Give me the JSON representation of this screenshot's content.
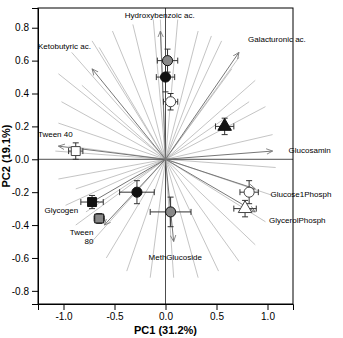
{
  "chart_data": {
    "type": "biplot",
    "x_label": "PC1 (31.2%)",
    "y_label": "PC2 (19.1%)",
    "xlim": [
      -1.25,
      1.25
    ],
    "ylim": [
      -0.88,
      0.92
    ],
    "xticks": [
      {
        "value": -1.0,
        "label": "-1.0"
      },
      -0.5,
      {
        "value": 0.0,
        "label": "0.0"
      },
      0.5,
      {
        "value": 1.0,
        "label": "1.0"
      }
    ],
    "yticks": [
      -0.8,
      -0.6,
      -0.4,
      -0.2,
      {
        "value": 0.0,
        "label": "0.0"
      },
      0.2,
      0.4,
      0.6,
      0.8
    ],
    "loadings": {
      "color": "#aaaaaa",
      "x": [
        -1.05,
        -0.92,
        -0.72,
        -0.52,
        -0.32,
        -0.12,
        0.12,
        0.32,
        0.55,
        0.72,
        0.88,
        0.98,
        1.05,
        1.08,
        1.05,
        0.98,
        0.88,
        0.72,
        0.52,
        0.32,
        0.08,
        -0.15,
        -0.38,
        -0.58,
        -0.75,
        -0.88,
        -0.98,
        -1.05,
        -1.08,
        -1.05,
        -1.02,
        -0.05,
        0.45,
        0.65,
        0.82,
        -0.65,
        -0.82,
        -0.95,
        -0.88,
        -0.78
      ],
      "y": [
        0.52,
        0.65,
        0.72,
        0.78,
        0.82,
        0.85,
        0.85,
        0.78,
        0.72,
        0.62,
        0.48,
        0.32,
        0.15,
        -0.05,
        -0.22,
        -0.38,
        -0.52,
        -0.62,
        -0.68,
        -0.72,
        -0.72,
        -0.72,
        -0.68,
        -0.6,
        -0.52,
        -0.4,
        -0.28,
        -0.12,
        0.05,
        0.22,
        0.35,
        0.85,
        0.75,
        0.55,
        0.35,
        0.68,
        0.45,
        0.08,
        -0.18,
        -0.32
      ]
    },
    "arrows": {
      "color": "#777777",
      "names": [
        "Hydroxybenzoic ac.",
        "Galacturonic ac.",
        "Ketobutyric ac.",
        "Tween 40",
        "Glycogen",
        "Tween\n80",
        "MethGlucoside",
        "GlycerolPhosph",
        "Glucose1Phosph",
        "Glucosamin"
      ],
      "x": [
        -0.05,
        0.72,
        -0.72,
        -1.05,
        -0.72,
        -0.6,
        0.08,
        0.88,
        0.88,
        1.05
      ],
      "y": [
        0.78,
        0.65,
        0.55,
        0.08,
        -0.26,
        -0.4,
        -0.5,
        -0.32,
        -0.18,
        0.05
      ]
    },
    "points": {
      "x": [
        0.02,
        0.0,
        0.05,
        0.58,
        -0.88,
        -0.28,
        -0.72,
        -0.65,
        0.05,
        0.82,
        0.78
      ],
      "y": [
        0.6,
        0.5,
        0.35,
        0.2,
        0.05,
        -0.2,
        -0.26,
        -0.36,
        -0.32,
        -0.2,
        -0.3
      ],
      "x_error": [
        0.1,
        0.09,
        0.07,
        0.09,
        0.07,
        0.17,
        0.11,
        0.05,
        0.2,
        0.09,
        0.11
      ],
      "y_error": [
        0.07,
        0.09,
        0.05,
        0.05,
        0.05,
        0.07,
        0.04,
        0.03,
        0.09,
        0.07,
        0.05
      ],
      "colors": [
        "#888888",
        "#111111",
        "white",
        "#111111",
        "white",
        "#111111",
        "#111111",
        "#888888",
        "#888888",
        "white",
        "white"
      ],
      "markers": [
        "circle",
        "circle",
        "circle",
        "triangle",
        "square",
        "circle",
        "square",
        "square",
        "circle",
        "circle",
        "triangle"
      ]
    }
  }
}
